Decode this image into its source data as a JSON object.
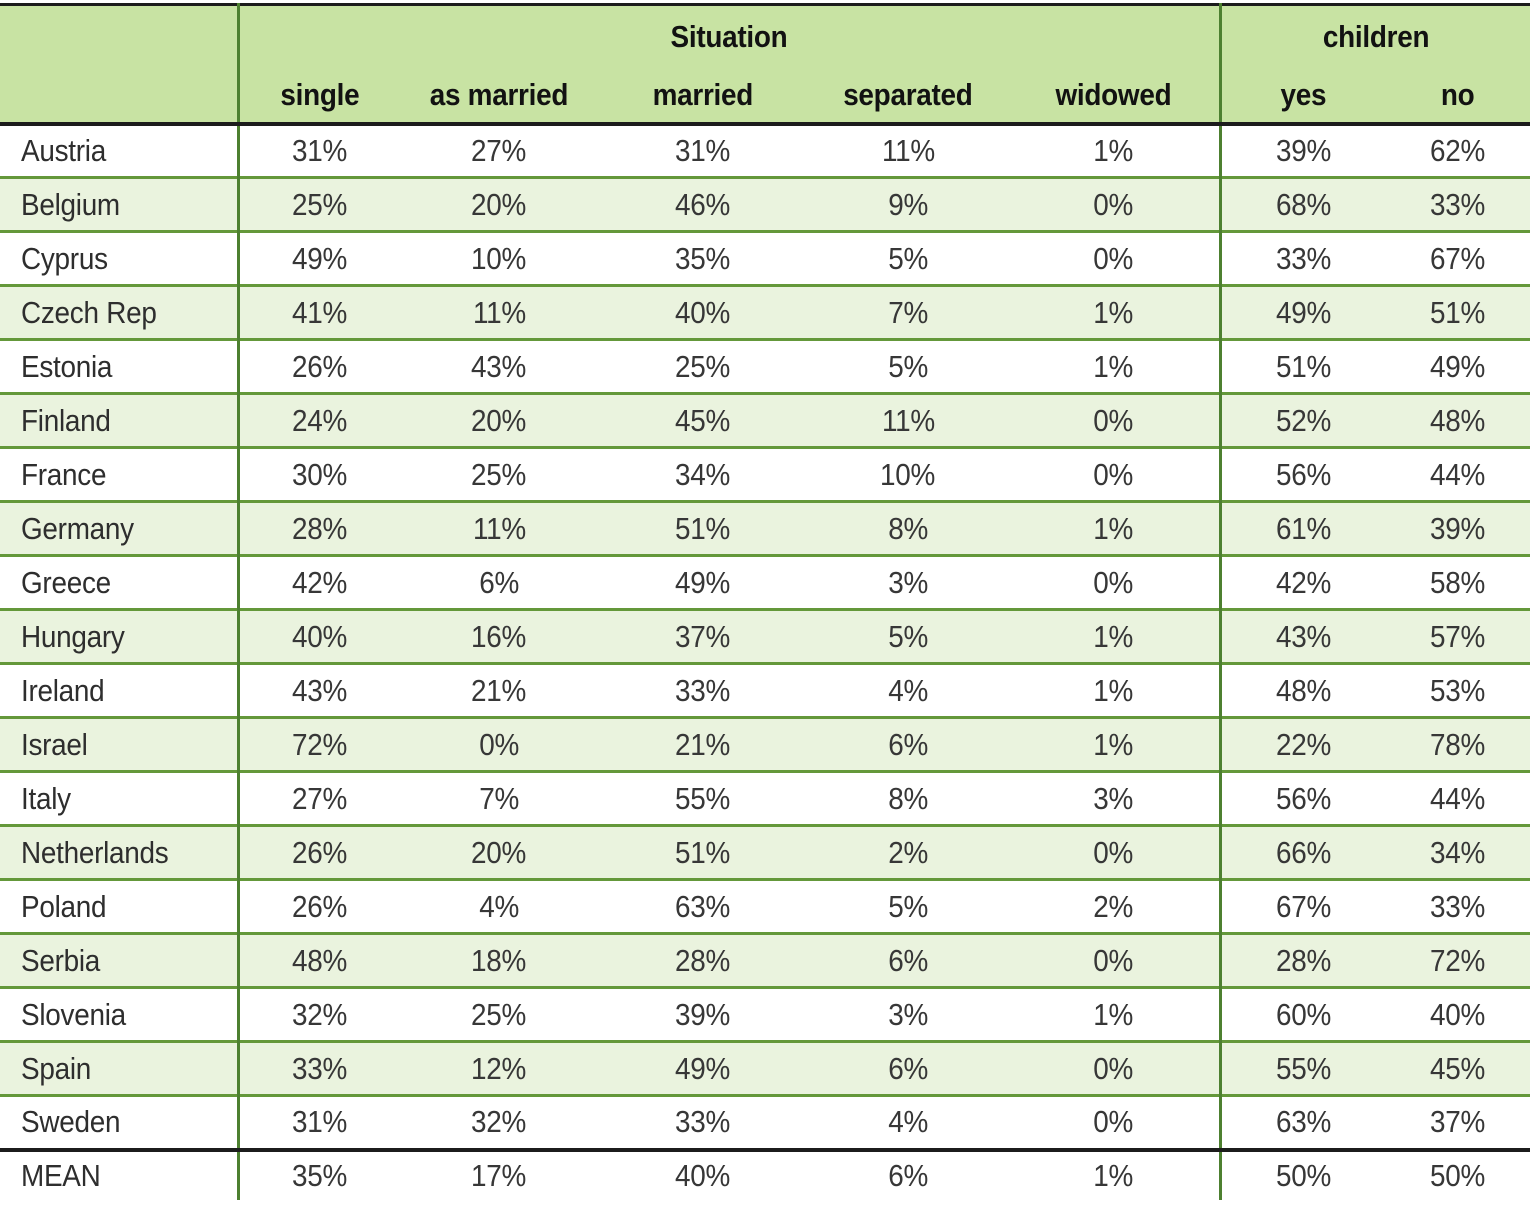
{
  "chart_data": {
    "type": "table",
    "column_groups": [
      {
        "label": "Situation",
        "span": 5
      },
      {
        "label": "children",
        "span": 2
      }
    ],
    "columns": [
      "single",
      "as married",
      "married",
      "separated",
      "widowed",
      "yes",
      "no"
    ],
    "rows": [
      {
        "country": "Austria",
        "values": [
          "31%",
          "27%",
          "31%",
          "11%",
          "1%",
          "39%",
          "62%"
        ]
      },
      {
        "country": "Belgium",
        "values": [
          "25%",
          "20%",
          "46%",
          "9%",
          "0%",
          "68%",
          "33%"
        ]
      },
      {
        "country": "Cyprus",
        "values": [
          "49%",
          "10%",
          "35%",
          "5%",
          "0%",
          "33%",
          "67%"
        ]
      },
      {
        "country": "Czech Rep",
        "values": [
          "41%",
          "11%",
          "40%",
          "7%",
          "1%",
          "49%",
          "51%"
        ]
      },
      {
        "country": "Estonia",
        "values": [
          "26%",
          "43%",
          "25%",
          "5%",
          "1%",
          "51%",
          "49%"
        ]
      },
      {
        "country": "Finland",
        "values": [
          "24%",
          "20%",
          "45%",
          "11%",
          "0%",
          "52%",
          "48%"
        ]
      },
      {
        "country": "France",
        "values": [
          "30%",
          "25%",
          "34%",
          "10%",
          "0%",
          "56%",
          "44%"
        ]
      },
      {
        "country": "Germany",
        "values": [
          "28%",
          "11%",
          "51%",
          "8%",
          "1%",
          "61%",
          "39%"
        ]
      },
      {
        "country": "Greece",
        "values": [
          "42%",
          "6%",
          "49%",
          "3%",
          "0%",
          "42%",
          "58%"
        ]
      },
      {
        "country": "Hungary",
        "values": [
          "40%",
          "16%",
          "37%",
          "5%",
          "1%",
          "43%",
          "57%"
        ]
      },
      {
        "country": "Ireland",
        "values": [
          "43%",
          "21%",
          "33%",
          "4%",
          "1%",
          "48%",
          "53%"
        ]
      },
      {
        "country": "Israel",
        "values": [
          "72%",
          "0%",
          "21%",
          "6%",
          "1%",
          "22%",
          "78%"
        ]
      },
      {
        "country": "Italy",
        "values": [
          "27%",
          "7%",
          "55%",
          "8%",
          "3%",
          "56%",
          "44%"
        ]
      },
      {
        "country": "Netherlands",
        "values": [
          "26%",
          "20%",
          "51%",
          "2%",
          "0%",
          "66%",
          "34%"
        ]
      },
      {
        "country": "Poland",
        "values": [
          "26%",
          "4%",
          "63%",
          "5%",
          "2%",
          "67%",
          "33%"
        ]
      },
      {
        "country": "Serbia",
        "values": [
          "48%",
          "18%",
          "28%",
          "6%",
          "0%",
          "28%",
          "72%"
        ]
      },
      {
        "country": "Slovenia",
        "values": [
          "32%",
          "25%",
          "39%",
          "3%",
          "1%",
          "60%",
          "40%"
        ]
      },
      {
        "country": "Spain",
        "values": [
          "33%",
          "12%",
          "49%",
          "6%",
          "0%",
          "55%",
          "45%"
        ]
      },
      {
        "country": "Sweden",
        "values": [
          "31%",
          "32%",
          "33%",
          "4%",
          "0%",
          "63%",
          "37%"
        ]
      },
      {
        "country": "MEAN",
        "values": [
          "35%",
          "17%",
          "40%",
          "6%",
          "1%",
          "50%",
          "50%"
        ],
        "is_mean": true
      }
    ],
    "colors": {
      "header_bg": "#c8e3a3",
      "alt_row_bg": "#eaf3de",
      "row_bg": "#ffffff",
      "grid_green": "#64983a",
      "divider_green": "#4d8030",
      "black_border": "#1c1c1c",
      "header_text": "#121212",
      "cell_text": "#373737"
    }
  }
}
